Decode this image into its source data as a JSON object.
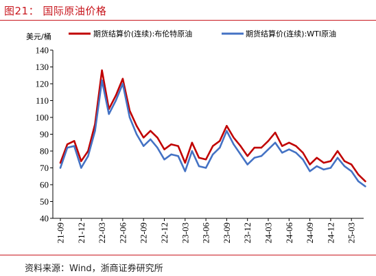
{
  "figure": {
    "title": "图21：  国际原油价格",
    "source": "资料来源：Wind，浙商证券研究所"
  },
  "chart_data": {
    "type": "line",
    "ylabel": "美元/桶",
    "ylim": [
      40,
      140
    ],
    "yticks": [
      40,
      50,
      60,
      70,
      80,
      90,
      100,
      110,
      120,
      130,
      140
    ],
    "xticks": [
      "21-09",
      "21-12",
      "22-03",
      "22-06",
      "22-09",
      "22-12",
      "23-03",
      "23-06",
      "23-09",
      "23-12",
      "24-03",
      "24-06",
      "24-09",
      "24-12",
      "25-03"
    ],
    "xlabel": "",
    "legend_position": "top",
    "grid": false,
    "series": [
      {
        "name": "期货结算价(连续):布伦特原油",
        "color": "#c00000",
        "x": [
          "21-09",
          "21-10",
          "21-11",
          "21-12",
          "22-01",
          "22-02",
          "22-03",
          "22-04",
          "22-05",
          "22-06",
          "22-07",
          "22-08",
          "22-09",
          "22-10",
          "22-11",
          "22-12",
          "23-01",
          "23-02",
          "23-03",
          "23-04",
          "23-05",
          "23-06",
          "23-07",
          "23-08",
          "23-09",
          "23-10",
          "23-11",
          "23-12",
          "24-01",
          "24-02",
          "24-03",
          "24-04",
          "24-05",
          "24-06",
          "24-07",
          "24-08",
          "24-09",
          "24-10",
          "24-11",
          "24-12",
          "25-01",
          "25-02",
          "25-03",
          "25-04",
          "25-05"
        ],
        "values": [
          73,
          84,
          86,
          74,
          80,
          96,
          128,
          105,
          113,
          123,
          104,
          95,
          88,
          92,
          88,
          81,
          84,
          83,
          73,
          85,
          76,
          75,
          83,
          86,
          95,
          88,
          83,
          77,
          82,
          82,
          86,
          91,
          83,
          85,
          83,
          79,
          72,
          76,
          73,
          74,
          80,
          74,
          72,
          66,
          62
        ]
      },
      {
        "name": "期货结算价(连续):WTI原油",
        "color": "#4472c4",
        "x": [
          "21-09",
          "21-10",
          "21-11",
          "21-12",
          "22-01",
          "22-02",
          "22-03",
          "22-04",
          "22-05",
          "22-06",
          "22-07",
          "22-08",
          "22-09",
          "22-10",
          "22-11",
          "22-12",
          "23-01",
          "23-02",
          "23-03",
          "23-04",
          "23-05",
          "23-06",
          "23-07",
          "23-08",
          "23-09",
          "23-10",
          "23-11",
          "23-12",
          "24-01",
          "24-02",
          "24-03",
          "24-04",
          "24-05",
          "24-06",
          "24-07",
          "24-08",
          "24-09",
          "24-10",
          "24-11",
          "24-12",
          "25-01",
          "25-02",
          "25-03",
          "25-04",
          "25-05"
        ],
        "values": [
          70,
          82,
          83,
          70,
          77,
          92,
          122,
          102,
          110,
          120,
          100,
          90,
          83,
          87,
          82,
          75,
          78,
          77,
          68,
          80,
          71,
          70,
          78,
          82,
          92,
          84,
          78,
          72,
          76,
          77,
          81,
          85,
          79,
          81,
          79,
          75,
          68,
          71,
          69,
          70,
          76,
          71,
          68,
          62,
          59
        ]
      }
    ]
  }
}
